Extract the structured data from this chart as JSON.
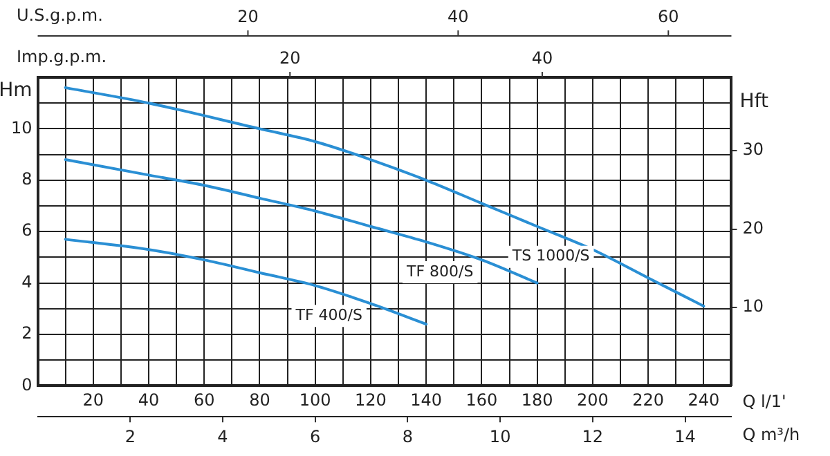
{
  "chart_data": {
    "type": "line",
    "xlabel": "Q l/1'",
    "x2label": "Q m³/h",
    "ylabel": "Hm",
    "y2label": "Hft",
    "annotations": [
      "U.S.g.p.m.",
      "20",
      "40",
      "60",
      "Imp.g.p.m.",
      "20",
      "40"
    ],
    "xlim": [
      0,
      250
    ],
    "xticks": [
      {
        "value": 0,
        "label": null
      },
      {
        "value": 10,
        "label": null
      },
      20,
      {
        "value": 30,
        "label": null
      },
      40,
      {
        "value": 50,
        "label": null
      },
      60,
      {
        "value": 70,
        "label": null
      },
      80,
      {
        "value": 90,
        "label": null
      },
      100,
      {
        "value": 110,
        "label": null
      },
      120,
      {
        "value": 130,
        "label": null
      },
      140,
      {
        "value": 150,
        "label": null
      },
      160,
      {
        "value": 170,
        "label": null
      },
      180,
      {
        "value": 190,
        "label": null
      },
      200,
      {
        "value": 210,
        "label": null
      },
      220,
      {
        "value": 230,
        "label": null
      },
      240,
      {
        "value": 250,
        "label": null
      }
    ],
    "x2lim": [
      0,
      15
    ],
    "x2ticks": [
      2,
      4,
      6,
      8,
      10,
      12,
      14
    ],
    "ylim": [
      0,
      12
    ],
    "yticks": [
      0,
      {
        "value": 1,
        "label": null
      },
      2,
      {
        "value": 3,
        "label": null
      },
      4,
      {
        "value": 5,
        "label": null
      },
      6,
      {
        "value": 7,
        "label": null
      },
      8,
      {
        "value": 9,
        "label": null
      },
      10,
      {
        "value": 11,
        "label": null
      }
    ],
    "y2lim": [
      0,
      39.37
    ],
    "y2ticks": [
      10,
      20,
      30
    ],
    "grid": true,
    "legend": false,
    "marker": "none",
    "line_style": "solid",
    "series": [
      {
        "name": "TS 1000/S",
        "color": "#2a8fd4",
        "x": [
          10,
          40,
          80,
          100,
          120,
          140,
          160,
          180,
          200,
          220,
          240
        ],
        "values": [
          11.6,
          11.0,
          10.0,
          9.5,
          8.8,
          8.0,
          7.1,
          6.2,
          5.3,
          4.2,
          3.1
        ]
      },
      {
        "name": "TF 800/S",
        "color": "#2a8fd4",
        "x": [
          10,
          40,
          60,
          80,
          100,
          120,
          140,
          160,
          180
        ],
        "values": [
          8.8,
          8.2,
          7.8,
          7.3,
          6.8,
          6.2,
          5.6,
          4.9,
          4.0
        ]
      },
      {
        "name": "TF 400/S",
        "color": "#2a8fd4",
        "x": [
          10,
          40,
          60,
          80,
          100,
          120,
          140
        ],
        "values": [
          5.7,
          5.3,
          4.9,
          4.4,
          3.9,
          3.2,
          2.4
        ]
      }
    ]
  }
}
